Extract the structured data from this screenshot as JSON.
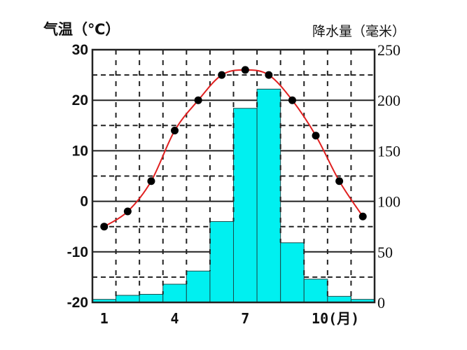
{
  "chart_data": {
    "type": "bar+line",
    "title": "",
    "left_axis_label": "气温（℃）",
    "right_axis_label": "降水量（毫米）",
    "x_axis_suffix": "(月)",
    "categories": [
      1,
      2,
      3,
      4,
      5,
      6,
      7,
      8,
      9,
      10,
      11,
      12
    ],
    "x_tick_labels": [
      {
        "month": 1,
        "label": "1"
      },
      {
        "month": 4,
        "label": "4"
      },
      {
        "month": 7,
        "label": "7"
      },
      {
        "month": 10,
        "label": "10(月)"
      }
    ],
    "series": [
      {
        "name": "气温",
        "type": "line",
        "axis": "left",
        "color": "#e02020",
        "marker_color": "#000000",
        "values": [
          -5,
          -2,
          4,
          14,
          20,
          25,
          26,
          25,
          20,
          13,
          4,
          -3
        ]
      },
      {
        "name": "降水量",
        "type": "bar",
        "axis": "right",
        "color": "#00f0f0",
        "values": [
          3,
          7,
          8,
          18,
          31,
          80,
          192,
          211,
          59,
          23,
          6,
          3
        ]
      }
    ],
    "left_ylim": [
      -20,
      30
    ],
    "left_ticks": [
      30,
      20,
      10,
      0,
      -10,
      -20
    ],
    "right_ylim": [
      0,
      250
    ],
    "right_ticks": [
      250,
      200,
      150,
      100,
      50,
      0
    ],
    "grid": {
      "major": "solid",
      "minor": "dashed"
    }
  },
  "labels": {
    "left_axis": "气温（℃）",
    "right_axis": "降水量（毫米）"
  }
}
